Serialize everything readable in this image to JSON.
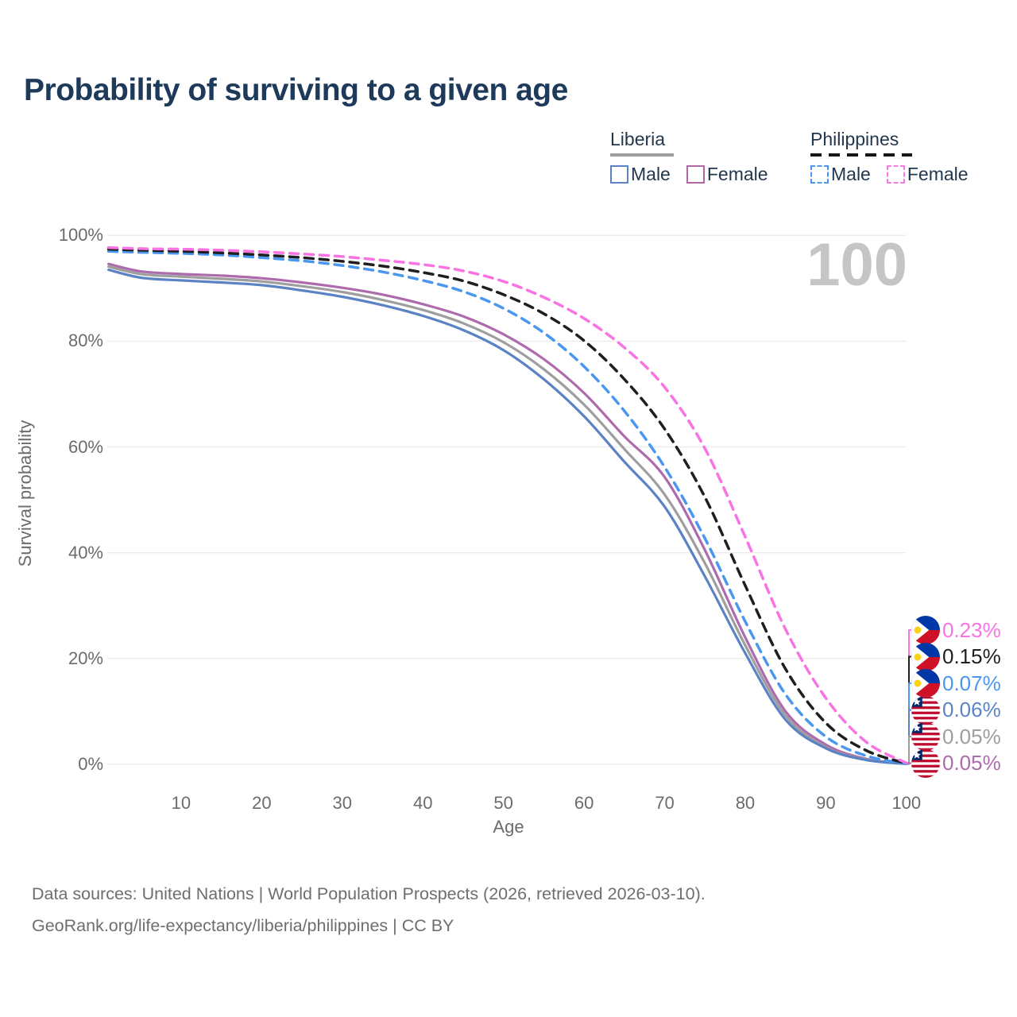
{
  "title": "Probability of surviving to a given age",
  "watermark": "100",
  "legend": {
    "groups": [
      {
        "name": "Liberia",
        "line_style": "solid",
        "underline_color": "#9e9e9e",
        "items": [
          {
            "label": "Male",
            "color": "#5a82c4",
            "dashed": false
          },
          {
            "label": "Female",
            "color": "#ae68a6",
            "dashed": false
          }
        ]
      },
      {
        "name": "Philippines",
        "line_style": "dashed",
        "underline_color": "#161616",
        "items": [
          {
            "label": "Male",
            "color": "#4a97f0",
            "dashed": true
          },
          {
            "label": "Female",
            "color": "#f97ae6",
            "dashed": true
          }
        ]
      }
    ]
  },
  "axes": {
    "y_title": "Survival probability",
    "y_ticks": [
      {
        "label": "100%",
        "value": 100
      },
      {
        "label": "80%",
        "value": 80
      },
      {
        "label": "60%",
        "value": 60
      },
      {
        "label": "40%",
        "value": 40
      },
      {
        "label": "20%",
        "value": 20
      },
      {
        "label": "0%",
        "value": 0
      }
    ],
    "x_title": "Age",
    "x_ticks": [
      {
        "label": "10",
        "value": 10
      },
      {
        "label": "20",
        "value": 20
      },
      {
        "label": "30",
        "value": 30
      },
      {
        "label": "40",
        "value": 40
      },
      {
        "label": "50",
        "value": 50
      },
      {
        "label": "60",
        "value": 60
      },
      {
        "label": "70",
        "value": 70
      },
      {
        "label": "80",
        "value": 80
      },
      {
        "label": "90",
        "value": 90
      },
      {
        "label": "100",
        "value": 100
      }
    ]
  },
  "end_labels": [
    {
      "value": "0.23%",
      "color": "#f973e2",
      "flag": "philippines"
    },
    {
      "value": "0.15%",
      "color": "#1f1f1f",
      "flag": "philippines"
    },
    {
      "value": "0.07%",
      "color": "#4a97f0",
      "flag": "philippines"
    },
    {
      "value": "0.06%",
      "color": "#5b84c8",
      "flag": "liberia"
    },
    {
      "value": "0.05%",
      "color": "#9e9e9e",
      "flag": "liberia"
    },
    {
      "value": "0.05%",
      "color": "#ad6bad",
      "flag": "liberia"
    }
  ],
  "footer": {
    "line1": "Data sources: United Nations | World Population Prospects (2026, retrieved 2026-03-10).",
    "line2": "GeoRank.org/life-expectancy/liberia/philippines | CC BY"
  },
  "chart_data": {
    "type": "line",
    "title": "Probability of surviving to a given age",
    "xlabel": "Age",
    "ylabel": "Survival probability",
    "xlim": [
      1,
      100
    ],
    "ylim": [
      0,
      100
    ],
    "grid": "horizontal",
    "legend_position": "top-right",
    "x": [
      1,
      5,
      10,
      15,
      20,
      25,
      30,
      35,
      40,
      45,
      50,
      55,
      60,
      65,
      70,
      75,
      80,
      85,
      90,
      95,
      100
    ],
    "series": [
      {
        "name": "Philippines Female",
        "country": "Philippines",
        "sex": "Female",
        "color": "#f973e2",
        "dashed": true,
        "end_value_pct": 0.23,
        "values": [
          97.7,
          97.5,
          97.4,
          97.2,
          96.9,
          96.5,
          96.0,
          95.3,
          94.5,
          93.3,
          91.3,
          88.3,
          84.3,
          78.8,
          71.3,
          59.7,
          43.0,
          25.5,
          12.5,
          4.2,
          0.23
        ]
      },
      {
        "name": "Philippines Total",
        "country": "Philippines",
        "sex": "Both",
        "color": "#1f1f1f",
        "dashed": true,
        "end_value_pct": 0.15,
        "values": [
          97.4,
          97.2,
          97.0,
          96.7,
          96.3,
          95.8,
          95.1,
          94.2,
          93.0,
          91.4,
          88.8,
          85.2,
          80.1,
          72.8,
          63.4,
          50.5,
          33.8,
          18.0,
          7.8,
          2.6,
          0.15
        ]
      },
      {
        "name": "Philippines Male",
        "country": "Philippines",
        "sex": "Male",
        "color": "#4a97f0",
        "dashed": true,
        "end_value_pct": 0.07,
        "values": [
          97.0,
          96.8,
          96.6,
          96.3,
          95.8,
          95.2,
          94.3,
          93.1,
          91.5,
          89.4,
          86.2,
          81.6,
          75.2,
          66.8,
          56.2,
          42.7,
          27.0,
          13.2,
          5.2,
          1.6,
          0.07
        ]
      },
      {
        "name": "Liberia Male",
        "country": "Liberia",
        "sex": "Male",
        "color": "#5a82c4",
        "dashed": false,
        "end_value_pct": 0.06,
        "values": [
          93.5,
          92.0,
          91.5,
          91.1,
          90.6,
          89.6,
          88.4,
          86.8,
          84.8,
          82.1,
          78.3,
          72.8,
          65.8,
          57.2,
          48.7,
          35.5,
          21.0,
          8.4,
          3.0,
          0.8,
          0.06
        ]
      },
      {
        "name": "Liberia Total",
        "country": "Liberia",
        "sex": "Both",
        "color": "#9e9e9e",
        "dashed": false,
        "end_value_pct": 0.05,
        "values": [
          94.1,
          92.7,
          92.2,
          91.8,
          91.3,
          90.4,
          89.3,
          87.8,
          85.9,
          83.4,
          79.8,
          74.7,
          68.0,
          59.6,
          51.0,
          38.0,
          22.5,
          9.2,
          3.2,
          0.9,
          0.05
        ]
      },
      {
        "name": "Liberia Female",
        "country": "Liberia",
        "sex": "Female",
        "color": "#ad6bad",
        "dashed": false,
        "end_value_pct": 0.05,
        "values": [
          94.6,
          93.2,
          92.7,
          92.4,
          91.9,
          91.1,
          90.1,
          88.8,
          87.0,
          84.7,
          81.3,
          76.6,
          70.2,
          62.0,
          54.3,
          40.5,
          24.0,
          10.0,
          3.7,
          1.0,
          0.05
        ]
      }
    ]
  }
}
